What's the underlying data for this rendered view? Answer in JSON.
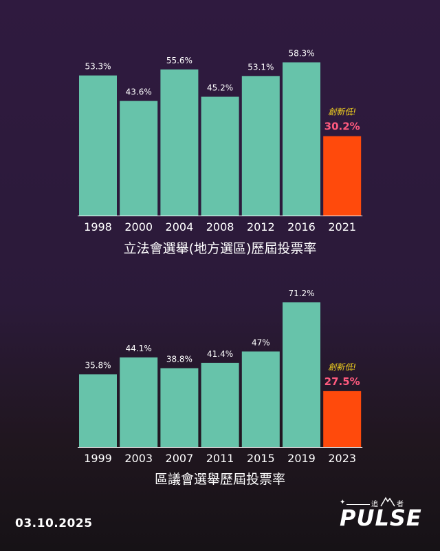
{
  "chart_data": [
    {
      "type": "bar",
      "title": "立法會選舉(地方選區)歷屆投票率",
      "categories": [
        "1998",
        "2000",
        "2004",
        "2008",
        "2012",
        "2016",
        "2021"
      ],
      "values": [
        53.3,
        43.6,
        55.6,
        45.2,
        53.1,
        58.3,
        30.2
      ],
      "value_labels": [
        "53.3%",
        "43.6%",
        "55.6%",
        "45.2%",
        "53.1%",
        "58.3%",
        "30.2%"
      ],
      "highlight_index": 6,
      "annotation": "創新低!",
      "ylim": [
        0,
        60
      ],
      "grid": false,
      "colors": {
        "bar": "#67c3aa",
        "highlight": "#ff4a0c",
        "highlight_label": "#ff5a7e",
        "annotation": "#f3d21f"
      }
    },
    {
      "type": "bar",
      "title": "區議會選舉歷屆投票率",
      "categories": [
        "1999",
        "2003",
        "2007",
        "2011",
        "2015",
        "2019",
        "2023"
      ],
      "values": [
        35.8,
        44.1,
        38.8,
        41.4,
        47,
        71.2,
        27.5
      ],
      "value_labels": [
        "35.8%",
        "44.1%",
        "38.8%",
        "41.4%",
        "47%",
        "71.2%",
        "27.5%"
      ],
      "highlight_index": 6,
      "annotation": "創新低!",
      "ylim": [
        0,
        75
      ],
      "grid": false,
      "colors": {
        "bar": "#67c3aa",
        "highlight": "#ff4a0c",
        "highlight_label": "#ff5a7e",
        "annotation": "#f3d21f"
      }
    }
  ],
  "footer": {
    "date": "03.10.2025",
    "logo_small_text": "追",
    "logo_small_text2": "者",
    "logo_word": "PULSE",
    "logo_icon": "star-icon"
  }
}
